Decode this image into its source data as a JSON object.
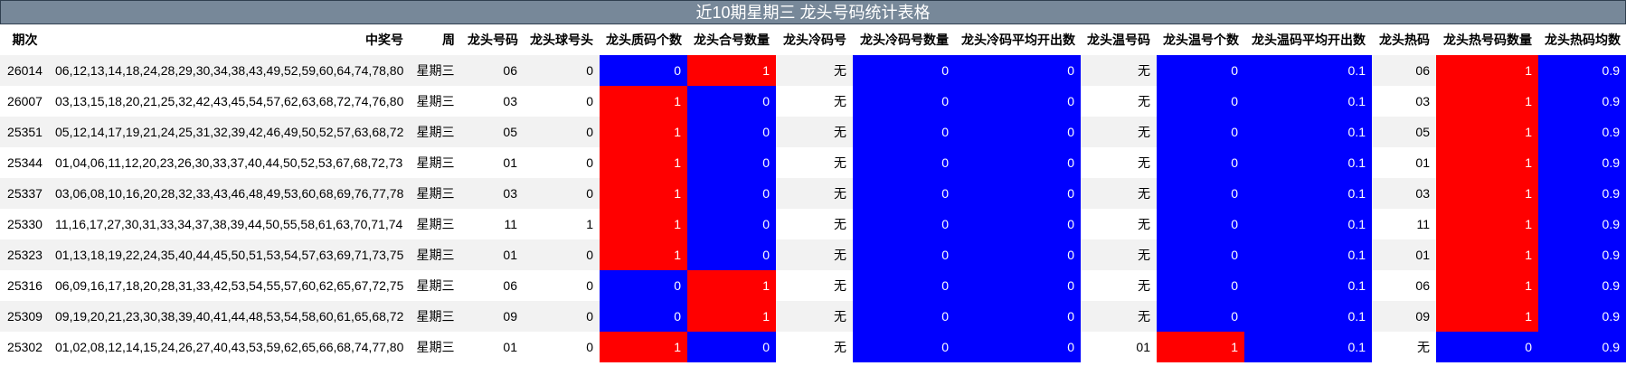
{
  "title": "近10期星期三 龙头号码统计表格",
  "palette": {
    "r": "#ff0000",
    "b": "#0000ff"
  },
  "table": {
    "headers": [
      "期次",
      "中奖号",
      "周",
      "龙头号码",
      "龙头球号头",
      "龙头质码个数",
      "龙头合号数量",
      "龙头冷码号",
      "龙头冷码号数量",
      "龙头冷码平均开出数",
      "龙头温号码",
      "龙头温号个数",
      "龙头温码平均开出数",
      "龙头热码",
      "龙头热号码数量",
      "龙头热码均数"
    ],
    "rows": [
      [
        "26014",
        "06,12,13,14,18,24,28,29,30,34,38,43,49,52,59,60,64,74,78,80",
        "星期三",
        "06",
        "0",
        "0",
        "1",
        "无",
        "0",
        "0",
        "无",
        "0",
        "0.1",
        "06",
        "1",
        "0.9"
      ],
      [
        "26007",
        "03,13,15,18,20,21,25,32,42,43,45,54,57,62,63,68,72,74,76,80",
        "星期三",
        "03",
        "0",
        "1",
        "0",
        "无",
        "0",
        "0",
        "无",
        "0",
        "0.1",
        "03",
        "1",
        "0.9"
      ],
      [
        "25351",
        "05,12,14,17,19,21,24,25,31,32,39,42,46,49,50,52,57,63,68,72",
        "星期三",
        "05",
        "0",
        "1",
        "0",
        "无",
        "0",
        "0",
        "无",
        "0",
        "0.1",
        "05",
        "1",
        "0.9"
      ],
      [
        "25344",
        "01,04,06,11,12,20,23,26,30,33,37,40,44,50,52,53,67,68,72,73",
        "星期三",
        "01",
        "0",
        "1",
        "0",
        "无",
        "0",
        "0",
        "无",
        "0",
        "0.1",
        "01",
        "1",
        "0.9"
      ],
      [
        "25337",
        "03,06,08,10,16,20,28,32,33,43,46,48,49,53,60,68,69,76,77,78",
        "星期三",
        "03",
        "0",
        "1",
        "0",
        "无",
        "0",
        "0",
        "无",
        "0",
        "0.1",
        "03",
        "1",
        "0.9"
      ],
      [
        "25330",
        "11,16,17,27,30,31,33,34,37,38,39,44,50,55,58,61,63,70,71,74",
        "星期三",
        "11",
        "1",
        "1",
        "0",
        "无",
        "0",
        "0",
        "无",
        "0",
        "0.1",
        "11",
        "1",
        "0.9"
      ],
      [
        "25323",
        "01,13,18,19,22,24,35,40,44,45,50,51,53,54,57,63,69,71,73,75",
        "星期三",
        "01",
        "0",
        "1",
        "0",
        "无",
        "0",
        "0",
        "无",
        "0",
        "0.1",
        "01",
        "1",
        "0.9"
      ],
      [
        "25316",
        "06,09,16,17,18,20,28,31,33,42,53,54,55,57,60,62,65,67,72,75",
        "星期三",
        "06",
        "0",
        "0",
        "1",
        "无",
        "0",
        "0",
        "无",
        "0",
        "0.1",
        "06",
        "1",
        "0.9"
      ],
      [
        "25309",
        "09,19,20,21,23,30,38,39,40,41,44,48,53,54,58,60,61,65,68,72",
        "星期三",
        "09",
        "0",
        "0",
        "1",
        "无",
        "0",
        "0",
        "无",
        "0",
        "0.1",
        "09",
        "1",
        "0.9"
      ],
      [
        "25302",
        "01,02,08,12,14,15,24,26,27,40,43,53,59,62,65,66,68,74,77,80",
        "星期三",
        "01",
        "0",
        "1",
        "0",
        "无",
        "0",
        "0",
        "01",
        "1",
        "0.1",
        "无",
        "0",
        "0.9"
      ]
    ],
    "fills": [
      [
        null,
        null,
        null,
        null,
        null,
        "b",
        "r",
        null,
        "b",
        "b",
        null,
        "b",
        "b",
        null,
        "r",
        "b"
      ],
      [
        null,
        null,
        null,
        null,
        null,
        "r",
        "b",
        null,
        "b",
        "b",
        null,
        "b",
        "b",
        null,
        "r",
        "b"
      ],
      [
        null,
        null,
        null,
        null,
        null,
        "r",
        "b",
        null,
        "b",
        "b",
        null,
        "b",
        "b",
        null,
        "r",
        "b"
      ],
      [
        null,
        null,
        null,
        null,
        null,
        "r",
        "b",
        null,
        "b",
        "b",
        null,
        "b",
        "b",
        null,
        "r",
        "b"
      ],
      [
        null,
        null,
        null,
        null,
        null,
        "r",
        "b",
        null,
        "b",
        "b",
        null,
        "b",
        "b",
        null,
        "r",
        "b"
      ],
      [
        null,
        null,
        null,
        null,
        null,
        "r",
        "b",
        null,
        "b",
        "b",
        null,
        "b",
        "b",
        null,
        "r",
        "b"
      ],
      [
        null,
        null,
        null,
        null,
        null,
        "r",
        "b",
        null,
        "b",
        "b",
        null,
        "b",
        "b",
        null,
        "r",
        "b"
      ],
      [
        null,
        null,
        null,
        null,
        null,
        "b",
        "r",
        null,
        "b",
        "b",
        null,
        "b",
        "b",
        null,
        "r",
        "b"
      ],
      [
        null,
        null,
        null,
        null,
        null,
        "b",
        "r",
        null,
        "b",
        "b",
        null,
        "b",
        "b",
        null,
        "r",
        "b"
      ],
      [
        null,
        null,
        null,
        null,
        null,
        "r",
        "b",
        null,
        "b",
        "b",
        null,
        "r",
        "b",
        null,
        "b",
        "b"
      ]
    ]
  }
}
